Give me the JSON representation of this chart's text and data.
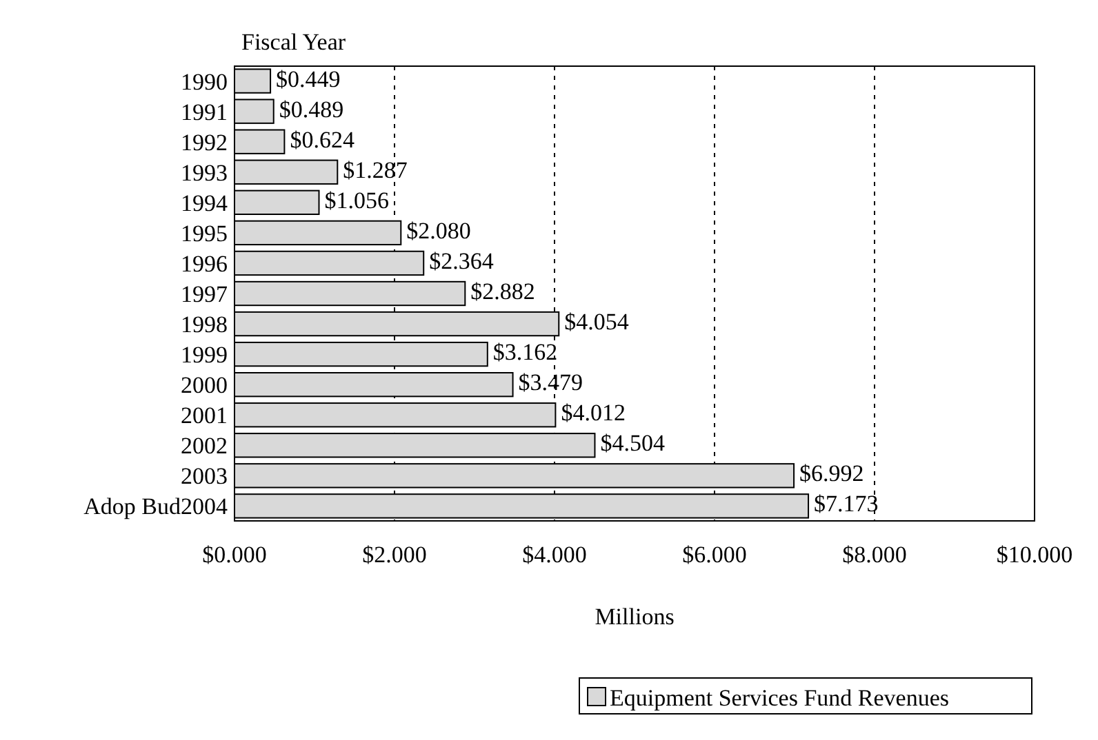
{
  "chart_data": {
    "type": "bar",
    "orientation": "horizontal",
    "ylabel": "Fiscal Year",
    "xlabel": "Millions",
    "categories": [
      "1990",
      "1991",
      "1992",
      "1993",
      "1994",
      "1995",
      "1996",
      "1997",
      "1998",
      "1999",
      "2000",
      "2001",
      "2002",
      "2003",
      "Adop Bud2004"
    ],
    "series": [
      {
        "name": "Equipment Services Fund Revenues",
        "color": "#d9d9d9",
        "values": [
          0.449,
          0.489,
          0.624,
          1.287,
          1.056,
          2.08,
          2.364,
          2.882,
          4.054,
          3.162,
          3.479,
          4.012,
          4.504,
          6.992,
          7.173
        ],
        "value_labels": [
          "$0.449",
          "$0.489",
          "$0.624",
          "$1.287",
          "$1.056",
          "$2.080",
          "$2.364",
          "$2.882",
          "$4.054",
          "$3.162",
          "$3.479",
          "$4.012",
          "$4.504",
          "$6.992",
          "$7.173"
        ]
      }
    ],
    "xlim": [
      0,
      10
    ],
    "xticks": [
      {
        "value": 0,
        "label": "$0.000"
      },
      {
        "value": 2,
        "label": "$2.000"
      },
      {
        "value": 4,
        "label": "$4.000"
      },
      {
        "value": 6,
        "label": "$6.000"
      },
      {
        "value": 8,
        "label": "$8.000"
      },
      {
        "value": 10,
        "label": "$10.000"
      }
    ],
    "grid": "x",
    "legend": "bottom right"
  }
}
